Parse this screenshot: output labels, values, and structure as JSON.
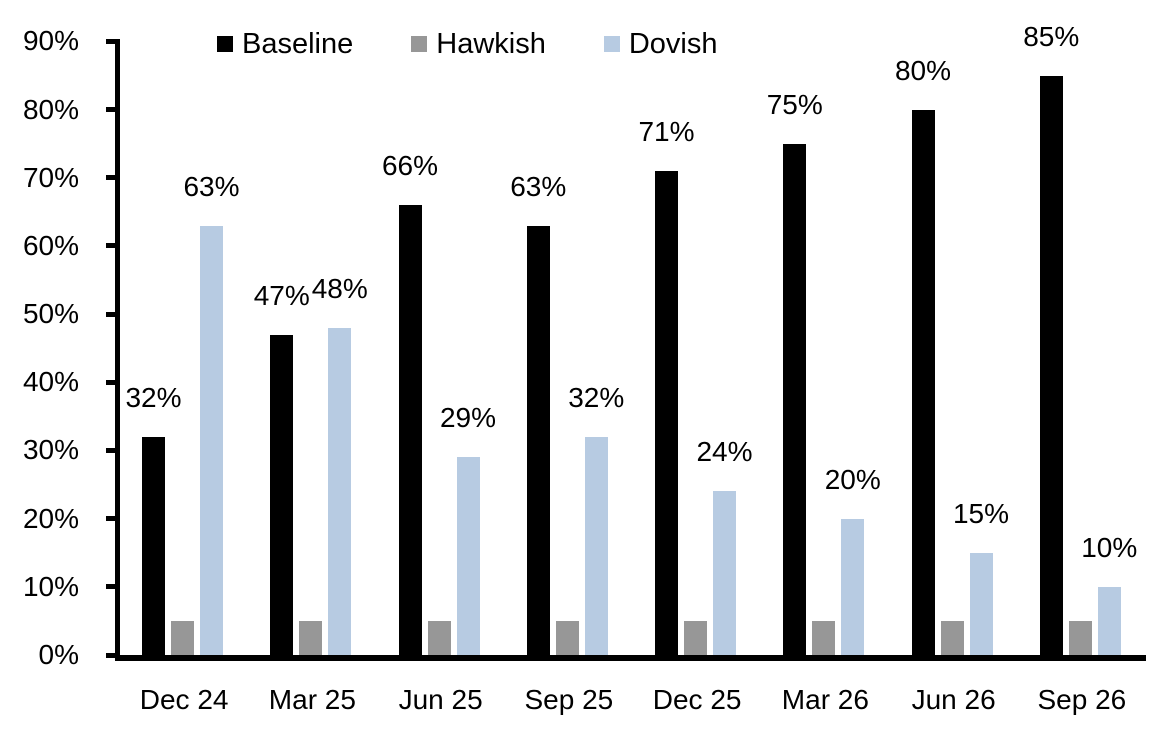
{
  "background_color": "#ffffff",
  "chart_data": {
    "type": "bar",
    "title": "",
    "xlabel": "",
    "ylabel": "",
    "categories": [
      "Dec 24",
      "Mar 25",
      "Jun 25",
      "Sep 25",
      "Dec 25",
      "Mar 26",
      "Jun 26",
      "Sep 26"
    ],
    "series": [
      {
        "name": "Baseline",
        "color": "#000000",
        "values": [
          32,
          47,
          66,
          63,
          71,
          75,
          80,
          85
        ],
        "show_labels": true
      },
      {
        "name": "Hawkish",
        "color": "#979797",
        "values": [
          5,
          5,
          5,
          5,
          5,
          5,
          5,
          5
        ],
        "show_labels": false
      },
      {
        "name": "Dovish",
        "color": "#b7cbe2",
        "values": [
          63,
          48,
          29,
          32,
          24,
          20,
          15,
          10
        ],
        "show_labels": true
      }
    ],
    "label_format": "{v}%",
    "ylim": [
      0,
      90
    ],
    "y_tick_step": 10,
    "y_tick_labels_top_to_bottom": [
      "90%",
      "80%",
      "70%",
      "60%",
      "50%",
      "40%",
      "30%",
      "20%",
      "10%",
      "0%"
    ],
    "grid": false,
    "legend_position": "top",
    "axis_color": "#000000"
  }
}
